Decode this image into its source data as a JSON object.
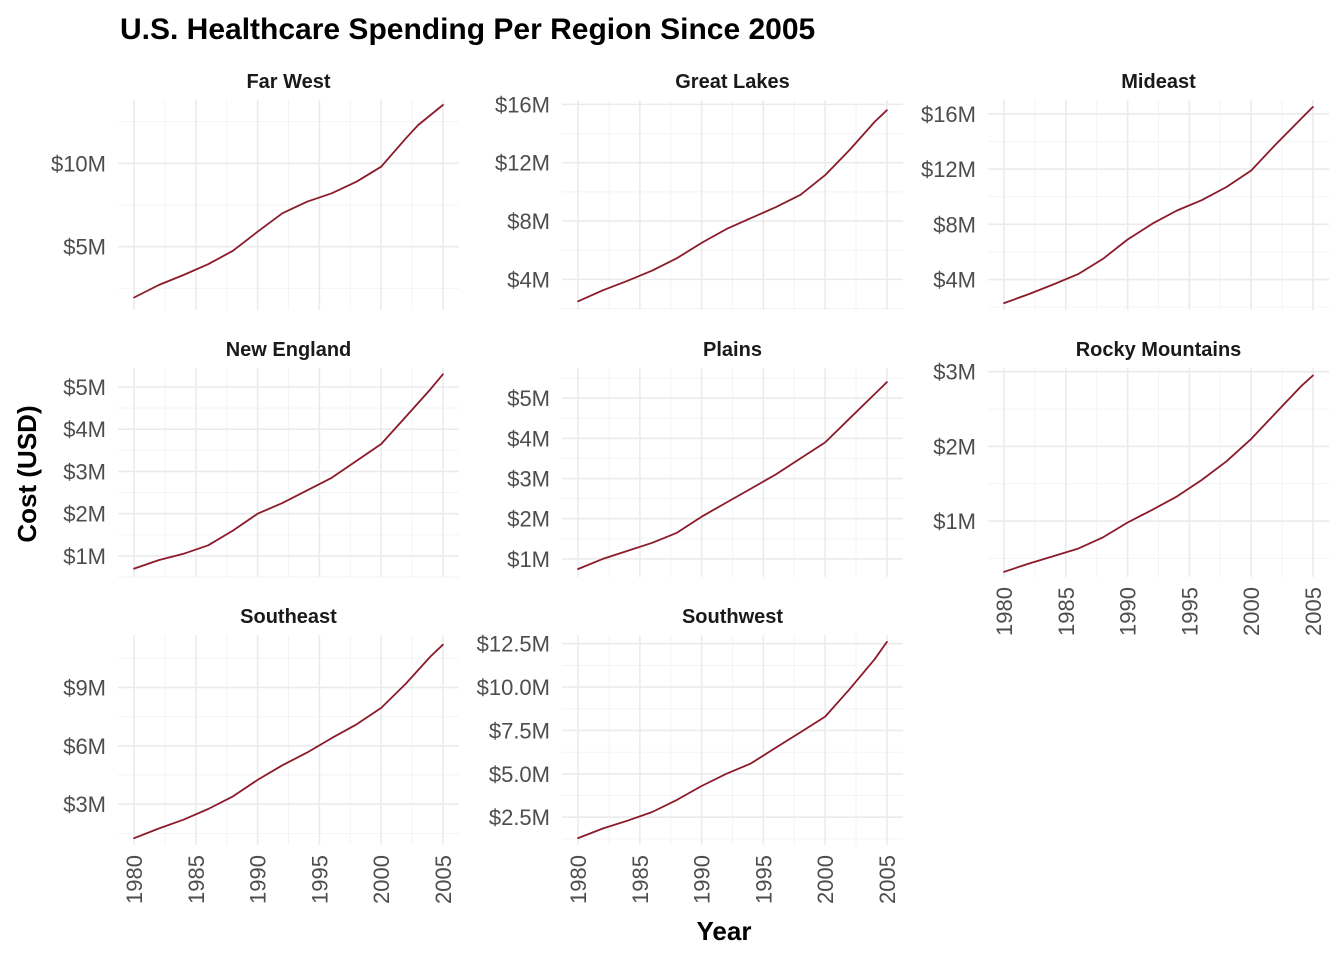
{
  "chart_data": {
    "type": "line",
    "title": "U.S. Healthcare Spending Per Region Since 2005",
    "xlabel": "Year",
    "ylabel": "Cost (USD)",
    "line_color": "#8B1A2B",
    "grid": true,
    "facet_layout": "3 columns x 3 rows, free y scales, x ticks only on bottom row of each column",
    "x_ticks": [
      1980,
      1985,
      1990,
      1995,
      2000,
      2005
    ],
    "panels": [
      {
        "name": "Far West",
        "ylim": [
          1.2,
          13.8
        ],
        "y_ticks": [
          5,
          10
        ],
        "y_tick_labels": [
          "$5M",
          "$10M"
        ],
        "x": [
          1980,
          1982,
          1984,
          1986,
          1988,
          1990,
          1992,
          1994,
          1996,
          1998,
          2000,
          2002,
          2003,
          2005
        ],
        "y": [
          1.95,
          2.7,
          3.3,
          3.95,
          4.75,
          5.9,
          7.0,
          7.7,
          8.2,
          8.9,
          9.8,
          11.5,
          12.3,
          13.5
        ]
      },
      {
        "name": "Great Lakes",
        "ylim": [
          1.9,
          16.3
        ],
        "y_ticks": [
          4,
          8,
          12,
          16
        ],
        "y_tick_labels": [
          "$4M",
          "$8M",
          "$12M",
          "$16M"
        ],
        "x": [
          1980,
          1982,
          1984,
          1986,
          1988,
          1990,
          1992,
          1994,
          1996,
          1998,
          2000,
          2002,
          2004,
          2005
        ],
        "y": [
          2.5,
          3.25,
          3.9,
          4.6,
          5.45,
          6.5,
          7.45,
          8.2,
          8.95,
          9.8,
          11.15,
          12.9,
          14.8,
          15.6
        ]
      },
      {
        "name": "Mideast",
        "ylim": [
          1.8,
          17.0
        ],
        "y_ticks": [
          4,
          8,
          12,
          16
        ],
        "y_tick_labels": [
          "$4M",
          "$8M",
          "$12M",
          "$16M"
        ],
        "x": [
          1980,
          1982,
          1984,
          1986,
          1988,
          1990,
          1992,
          1994,
          1996,
          1998,
          2000,
          2002,
          2004,
          2005
        ],
        "y": [
          2.3,
          2.95,
          3.65,
          4.4,
          5.5,
          6.9,
          8.05,
          9.0,
          9.75,
          10.7,
          11.9,
          13.8,
          15.6,
          16.5
        ]
      },
      {
        "name": "New England",
        "ylim": [
          0.5,
          5.45
        ],
        "y_ticks": [
          1,
          2,
          3,
          4,
          5
        ],
        "y_tick_labels": [
          "$1M",
          "$2M",
          "$3M",
          "$4M",
          "$5M"
        ],
        "x": [
          1980,
          1982,
          1984,
          1986,
          1988,
          1990,
          1992,
          1994,
          1996,
          1998,
          2000,
          2002,
          2004,
          2005
        ],
        "y": [
          0.7,
          0.9,
          1.05,
          1.25,
          1.6,
          2.0,
          2.25,
          2.55,
          2.85,
          3.25,
          3.65,
          4.3,
          4.95,
          5.3
        ]
      },
      {
        "name": "Plains",
        "ylim": [
          0.55,
          5.75
        ],
        "y_ticks": [
          1,
          2,
          3,
          4,
          5
        ],
        "y_tick_labels": [
          "$1M",
          "$2M",
          "$3M",
          "$4M",
          "$5M"
        ],
        "x": [
          1980,
          1982,
          1984,
          1986,
          1988,
          1990,
          1992,
          1994,
          1996,
          1998,
          2000,
          2002,
          2004,
          2005
        ],
        "y": [
          0.75,
          1.0,
          1.2,
          1.4,
          1.65,
          2.05,
          2.4,
          2.75,
          3.1,
          3.5,
          3.9,
          4.5,
          5.1,
          5.4
        ]
      },
      {
        "name": "Rocky Mountains",
        "ylim": [
          0.25,
          3.05
        ],
        "y_ticks": [
          1,
          2,
          3
        ],
        "y_tick_labels": [
          "$1M",
          "$2M",
          "$3M"
        ],
        "x": [
          1980,
          1982,
          1984,
          1986,
          1988,
          1990,
          1992,
          1994,
          1996,
          1998,
          2000,
          2002,
          2004,
          2005
        ],
        "y": [
          0.32,
          0.43,
          0.53,
          0.63,
          0.78,
          0.98,
          1.15,
          1.33,
          1.55,
          1.8,
          2.1,
          2.45,
          2.8,
          2.95
        ]
      },
      {
        "name": "Southeast",
        "ylim": [
          0.9,
          11.7
        ],
        "y_ticks": [
          3,
          6,
          9
        ],
        "y_tick_labels": [
          "$3M",
          "$6M",
          "$9M"
        ],
        "x": [
          1980,
          1982,
          1984,
          1986,
          1988,
          1990,
          1992,
          1994,
          1996,
          1998,
          2000,
          2002,
          2004,
          2005
        ],
        "y": [
          1.25,
          1.75,
          2.2,
          2.75,
          3.4,
          4.25,
          5.0,
          5.65,
          6.4,
          7.1,
          7.95,
          9.2,
          10.6,
          11.2
        ]
      },
      {
        "name": "Southwest",
        "ylim": [
          0.9,
          13.0
        ],
        "y_ticks": [
          2.5,
          5.0,
          7.5,
          10.0,
          12.5
        ],
        "y_tick_labels": [
          "$2.5M",
          "$5.0M",
          "$7.5M",
          "$10.0M",
          "$12.5M"
        ],
        "x": [
          1980,
          1982,
          1984,
          1986,
          1988,
          1990,
          1992,
          1994,
          1996,
          1998,
          2000,
          2002,
          2004,
          2005
        ],
        "y": [
          1.3,
          1.85,
          2.3,
          2.8,
          3.5,
          4.3,
          5.0,
          5.6,
          6.5,
          7.4,
          8.3,
          9.9,
          11.6,
          12.6
        ]
      }
    ]
  }
}
